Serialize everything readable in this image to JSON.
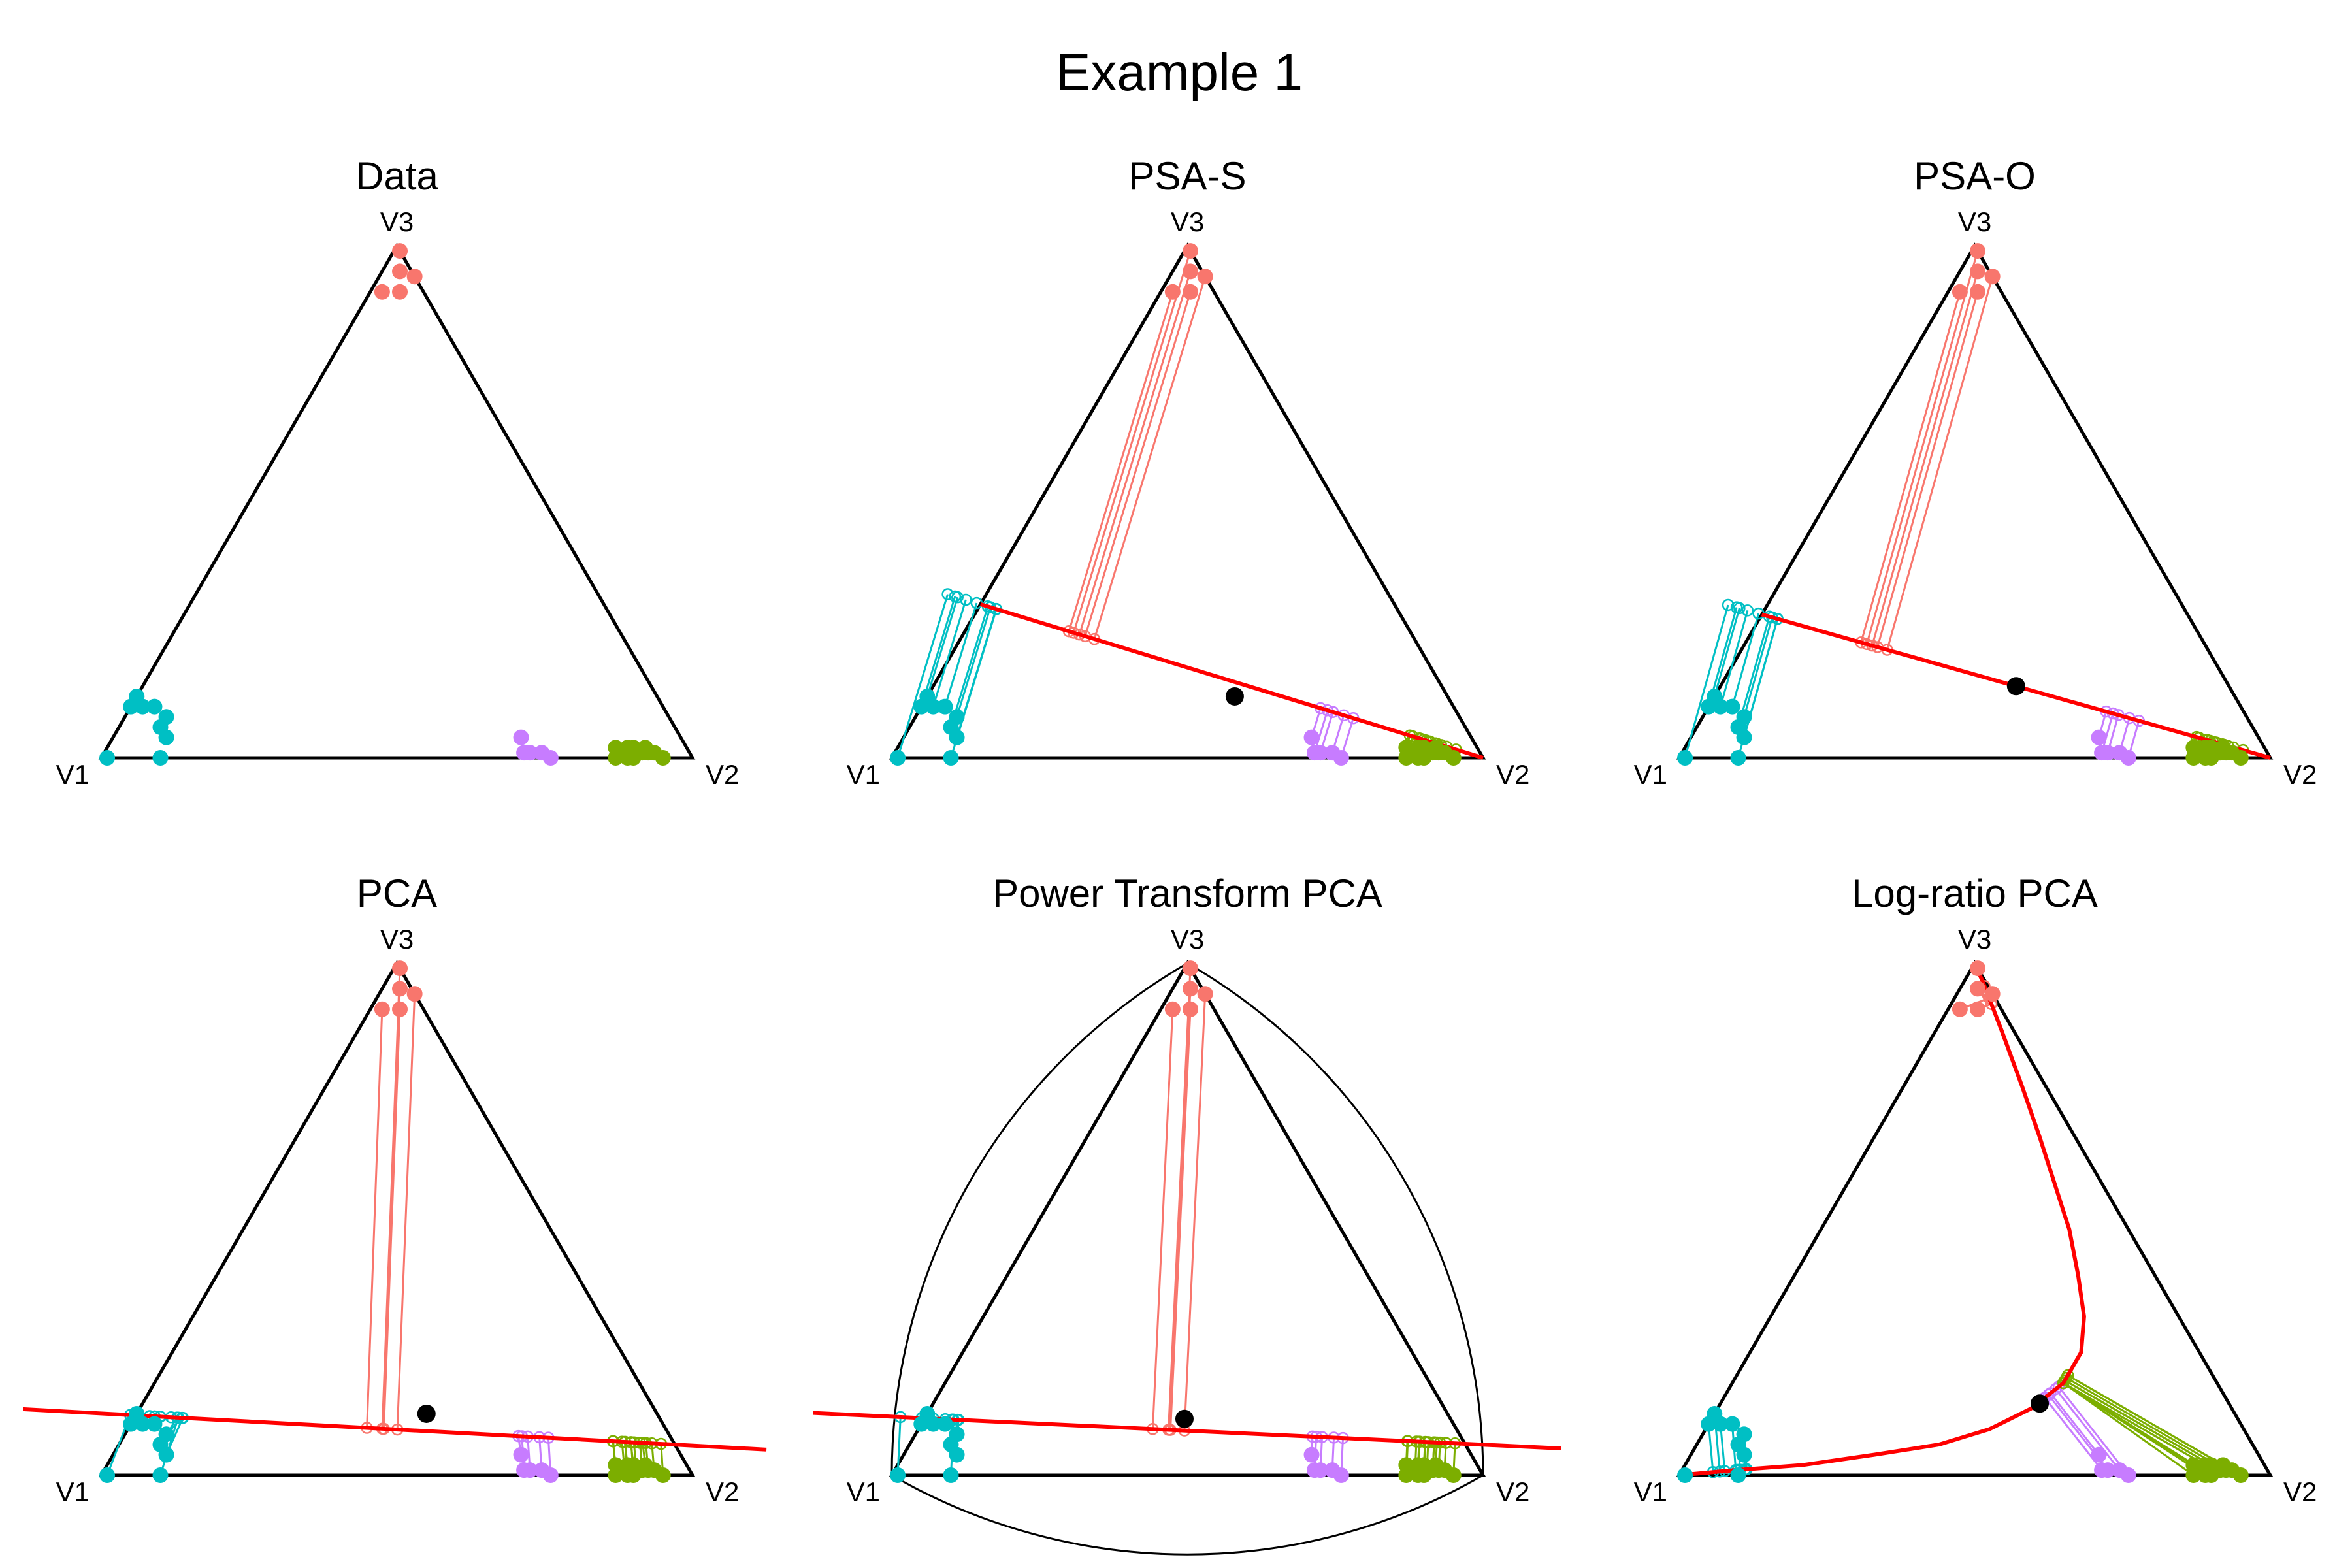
{
  "title": "Example 1",
  "colors": {
    "red": "#F8766D",
    "green": "#7CAE00",
    "cyan": "#00BFC4",
    "purple": "#C77CFF",
    "fit_line": "#FF0000",
    "center": "#000000",
    "frame": "#000000"
  },
  "chart_data": [
    {
      "type": "scatter",
      "panel": "Data",
      "title": "Data",
      "coordinate_system": "ternary",
      "vertex_labels": [
        "V1",
        "V2",
        "V3"
      ],
      "series": [
        {
          "color": "red",
          "points": [
            [
              0.0,
              0.01,
              0.99
            ],
            [
              0.02,
              0.03,
              0.95
            ],
            [
              0.0,
              0.06,
              0.94
            ],
            [
              0.04,
              0.05,
              0.91
            ],
            [
              0.07,
              0.02,
              0.91
            ]
          ]
        },
        {
          "color": "cyan",
          "points": [
            [
              0.99,
              0.01,
              0.0
            ],
            [
              0.88,
              0.0,
              0.12
            ],
            [
              0.9,
              0.0,
              0.1
            ],
            [
              0.88,
              0.02,
              0.1
            ],
            [
              0.86,
              0.04,
              0.1
            ],
            [
              0.85,
              0.07,
              0.08
            ],
            [
              0.87,
              0.07,
              0.06
            ],
            [
              0.87,
              0.09,
              0.04
            ],
            [
              0.9,
              0.1,
              0.0
            ]
          ]
        },
        {
          "color": "purple",
          "points": [
            [
              0.27,
              0.69,
              0.04
            ],
            [
              0.27,
              0.72,
              0.01
            ],
            [
              0.25,
              0.74,
              0.01
            ],
            [
              0.24,
              0.76,
              0.0
            ],
            [
              0.28,
              0.71,
              0.01
            ]
          ]
        },
        {
          "color": "green",
          "points": [
            [
              0.11,
              0.89,
              0.0
            ],
            [
              0.11,
              0.88,
              0.01
            ],
            [
              0.08,
              0.91,
              0.01
            ],
            [
              0.06,
              0.93,
              0.01
            ],
            [
              0.09,
              0.9,
              0.01
            ],
            [
              0.12,
              0.86,
              0.02
            ],
            [
              0.1,
              0.88,
              0.02
            ],
            [
              0.09,
              0.89,
              0.02
            ],
            [
              0.08,
              0.91,
              0.01
            ],
            [
              0.1,
              0.9,
              0.0
            ],
            [
              0.05,
              0.95,
              0.0
            ],
            [
              0.07,
              0.92,
              0.01
            ],
            [
              0.07,
              0.91,
              0.02
            ],
            [
              0.13,
              0.87,
              0.0
            ]
          ]
        }
      ]
    },
    {
      "type": "scatter",
      "panel": "PSA-S",
      "title": "PSA-S",
      "coordinate_system": "ternary",
      "vertex_labels": [
        "V1",
        "V2",
        "V3"
      ],
      "fit": {
        "type": "line",
        "from": [
          0.7,
          0.0,
          0.3
        ],
        "to": [
          0.0,
          1.0,
          0.0
        ],
        "center": [
          0.36,
          0.52,
          0.12
        ]
      },
      "projection": "to_fit"
    },
    {
      "type": "scatter",
      "panel": "PSA-O",
      "title": "PSA-O",
      "coordinate_system": "ternary",
      "vertex_labels": [
        "V1",
        "V2",
        "V3"
      ],
      "fit": {
        "type": "line",
        "from": [
          0.72,
          0.0,
          0.28
        ],
        "to": [
          0.0,
          1.0,
          0.0
        ],
        "center": [
          0.36,
          0.5,
          0.14
        ]
      },
      "projection": "to_fit"
    },
    {
      "type": "scatter",
      "panel": "PCA",
      "title": "PCA",
      "coordinate_system": "ternary",
      "vertex_labels": [
        "V1",
        "V2",
        "V3"
      ],
      "fit": {
        "type": "line",
        "from": [
          1.3,
          -0.35,
          0.15
        ],
        "to": [
          -0.15,
          1.1,
          0.05
        ],
        "center": [
          0.39,
          0.49,
          0.12
        ]
      },
      "projection": "to_fit"
    },
    {
      "type": "scatter",
      "panel": "Power Transform PCA",
      "title": "Power Transform PCA",
      "coordinate_system": "ternary",
      "vertex_labels": [
        "V1",
        "V2",
        "V3"
      ],
      "fit": {
        "type": "line",
        "from": [
          1.22,
          -0.35,
          0.13
        ],
        "to": [
          -0.2,
          1.15,
          0.05
        ],
        "center": [
          0.45,
          0.44,
          0.11
        ]
      },
      "projection": "to_fit",
      "power_frame": true
    },
    {
      "type": "scatter",
      "panel": "Log-ratio PCA",
      "title": "Log-ratio PCA",
      "coordinate_system": "ternary",
      "vertex_labels": [
        "V1",
        "V2",
        "V3"
      ],
      "fit": {
        "type": "curve",
        "points": [
          [
            0.0,
            0.0,
            1.0
          ],
          [
            0.005,
            0.035,
            0.96
          ],
          [
            0.02,
            0.11,
            0.87
          ],
          [
            0.04,
            0.2,
            0.76
          ],
          [
            0.06,
            0.28,
            0.66
          ],
          [
            0.08,
            0.35,
            0.57
          ],
          [
            0.1,
            0.42,
            0.48
          ],
          [
            0.13,
            0.48,
            0.39
          ],
          [
            0.16,
            0.53,
            0.31
          ],
          [
            0.2,
            0.56,
            0.24
          ],
          [
            0.26,
            0.56,
            0.18
          ],
          [
            0.34,
            0.53,
            0.13
          ],
          [
            0.43,
            0.48,
            0.09
          ],
          [
            0.53,
            0.41,
            0.06
          ],
          [
            0.65,
            0.31,
            0.04
          ],
          [
            0.78,
            0.2,
            0.02
          ],
          [
            0.9,
            0.09,
            0.01
          ],
          [
            1.0,
            0.0,
            0.0
          ]
        ],
        "center": [
          0.32,
          0.54,
          0.14
        ]
      },
      "projection": "to_fit"
    }
  ]
}
